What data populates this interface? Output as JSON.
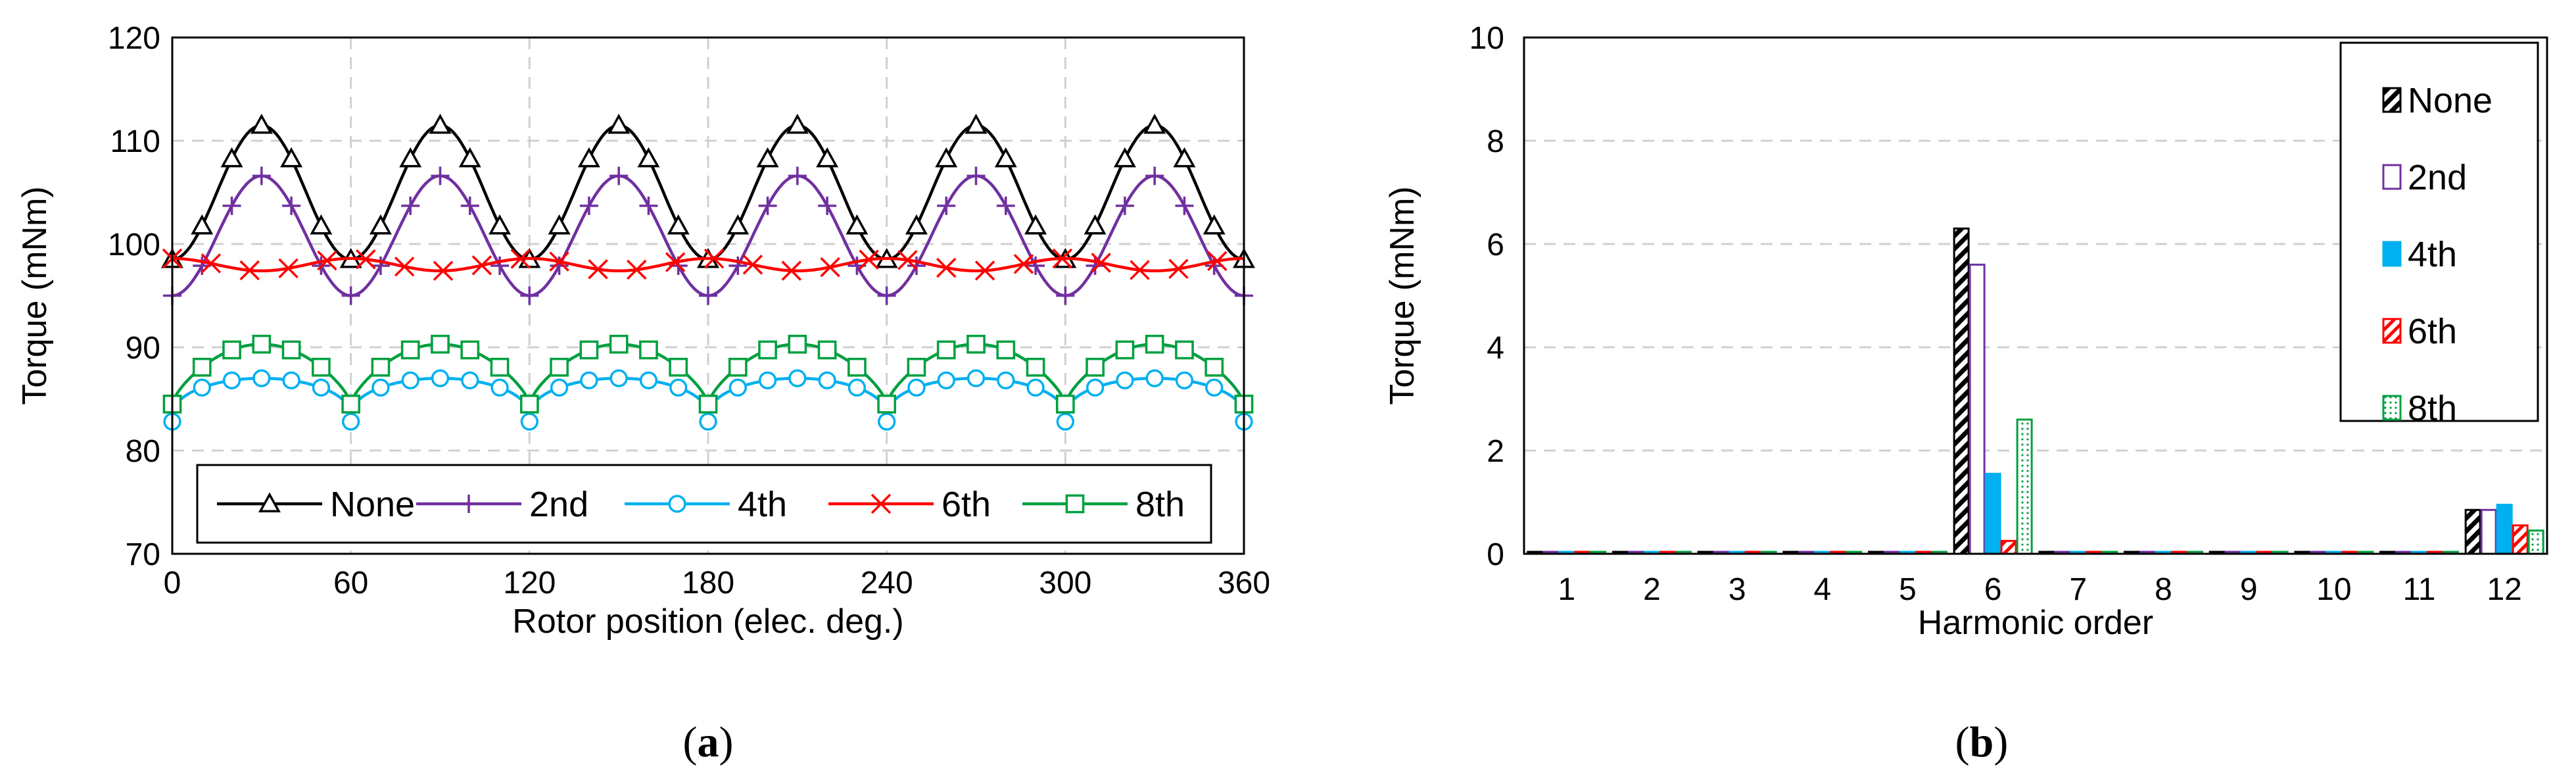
{
  "chart_data": [
    {
      "type": "line",
      "caption_open": "(",
      "caption_letter": "a",
      "caption_close": ")",
      "xlabel": "Rotor position (elec. deg.)",
      "ylabel": "Torque (mNm)",
      "xlim": [
        0,
        360
      ],
      "ylim": [
        70,
        120
      ],
      "xticks": [
        0,
        60,
        120,
        180,
        240,
        300,
        360
      ],
      "yticks": [
        70,
        80,
        90,
        100,
        110,
        120
      ],
      "grid": true,
      "legend_position": "bottom",
      "series": [
        {
          "name": "None",
          "color": "#000000",
          "marker": "triangle",
          "mean": 105,
          "amp": 6.5,
          "shape": "cos",
          "phase": 30,
          "marker_step": 10
        },
        {
          "name": "2nd",
          "color": "#7030A0",
          "marker": "plus",
          "mean": 100.8,
          "amp": 5.8,
          "shape": "cos",
          "phase": 30,
          "marker_step": 10
        },
        {
          "name": "4th",
          "color": "#00B0F0",
          "marker": "circle",
          "mean": 82.8,
          "amp": 4.2,
          "shape": "hump",
          "phase": 0,
          "marker_step": 10
        },
        {
          "name": "6th",
          "color": "#FF0000",
          "marker": "x",
          "mean": 98,
          "amp": 0.6,
          "shape": "cos",
          "phase": 0,
          "marker_step": 13
        },
        {
          "name": "8th",
          "color": "#00A040",
          "marker": "square",
          "mean": 84.5,
          "amp": 5.8,
          "shape": "hump2",
          "phase": 0,
          "marker_step": 10
        }
      ]
    },
    {
      "type": "bar",
      "caption_open": "(",
      "caption_letter": "b",
      "caption_close": ")",
      "xlabel": "Harmonic order",
      "ylabel": "Torque (mNm)",
      "ylim": [
        0,
        10
      ],
      "yticks": [
        0,
        2,
        4,
        6,
        8,
        10
      ],
      "categories": [
        "1",
        "2",
        "3",
        "4",
        "5",
        "6",
        "7",
        "8",
        "9",
        "10",
        "11",
        "12"
      ],
      "grid": true,
      "legend_position": "top-right",
      "series": [
        {
          "name": "None",
          "color": "#000000",
          "fill": "hatch",
          "values": [
            0.03,
            0.03,
            0.03,
            0.03,
            0.03,
            6.3,
            0.03,
            0.03,
            0.03,
            0.03,
            0.03,
            0.85
          ]
        },
        {
          "name": "2nd",
          "color": "#7030A0",
          "fill": "outline",
          "values": [
            0.03,
            0.03,
            0.03,
            0.03,
            0.03,
            5.6,
            0.03,
            0.03,
            0.03,
            0.03,
            0.03,
            0.85
          ]
        },
        {
          "name": "4th",
          "color": "#00B0F0",
          "fill": "solid",
          "values": [
            0.03,
            0.03,
            0.03,
            0.03,
            0.03,
            1.55,
            0.03,
            0.03,
            0.03,
            0.03,
            0.03,
            0.95
          ]
        },
        {
          "name": "6th",
          "color": "#FF0000",
          "fill": "diag",
          "values": [
            0.03,
            0.03,
            0.03,
            0.03,
            0.03,
            0.25,
            0.03,
            0.03,
            0.03,
            0.03,
            0.03,
            0.55
          ]
        },
        {
          "name": "8th",
          "color": "#00A040",
          "fill": "dots",
          "values": [
            0.03,
            0.03,
            0.03,
            0.03,
            0.03,
            2.6,
            0.03,
            0.03,
            0.03,
            0.03,
            0.03,
            0.45
          ]
        }
      ]
    }
  ]
}
